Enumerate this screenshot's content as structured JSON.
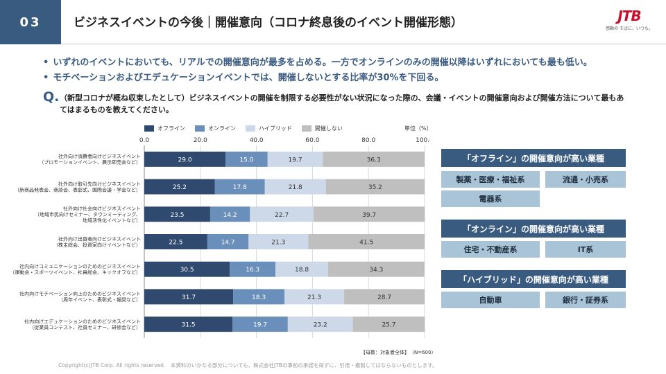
{
  "header": {
    "page_number": "03",
    "title": "ビジネスイベントの今後｜開催意向（コロナ終息後のイベント開催形態）"
  },
  "logo": {
    "mark": "JTB",
    "tagline": "感動の そばに、いつも。"
  },
  "bullets": [
    "いずれのイベントにおいても、リアルでの開催意向が最多を占める。一方でオンラインのみの開催以降はいずれにおいても最も低い。",
    "モチベーションおよびエデュケーションイベントでは、開催しないとする比率が30%を下回る。"
  ],
  "question": {
    "mark": "Q.",
    "text": "（新型コロナが概ね収束したとして）ビジネスイベントの開催を制限する必要性がない状況になった際の、会議・イベントの開催意向および開催方法について最もあてはまるものを教えてください。"
  },
  "chart_data": {
    "type": "bar",
    "orientation": "horizontal",
    "stacked": true,
    "unit_label": "単位（%）",
    "xlim": [
      0,
      100
    ],
    "x_ticks": [
      "0.0",
      "20.0",
      "40.0",
      "60.0",
      "80.0",
      "100.0"
    ],
    "categories": [
      [
        "社外向け消費者向けビジネスイベント",
        "（プロモーションイベント、展示即売会など）"
      ],
      [
        "社外向け取引先向けビジネスイベント",
        "（新商品発表会、商談会、表彰式、国際会議・学会など）"
      ],
      [
        "社外向け社会向けビジネスイベント",
        "（地域市民向けセミナー、タウンミーティング、",
        "地域活性化イベントなど）"
      ],
      [
        "社外向け出資者向けビジネスイベント",
        "（株主総会、投資家向けイベントなど）"
      ],
      [
        "社内向けコミュニケーションのためのビジネスイベント",
        "（運動会・スポーツイベント、社員総会、キックオフなど）"
      ],
      [
        "社内向けモチベーション向上のためのビジネスイベント",
        "（周年イベント、表彰式・報奨など）"
      ],
      [
        "社内向けエデュケーションのためのビジネスイベント",
        "（従業員コンテスト、社員セミナー、研修会など）"
      ]
    ],
    "series": [
      {
        "name": "オフライン",
        "color": "#2f4a6e",
        "label_color": "#ffffff",
        "values": [
          29.0,
          25.2,
          23.5,
          22.5,
          30.5,
          31.7,
          31.5
        ]
      },
      {
        "name": "オンライン",
        "color": "#6a8fba",
        "label_color": "#ffffff",
        "values": [
          15.0,
          17.8,
          14.2,
          14.7,
          16.3,
          18.3,
          19.7
        ]
      },
      {
        "name": "ハイブリッド",
        "color": "#cdd8e8",
        "label_color": "#333333",
        "values": [
          19.7,
          21.8,
          22.7,
          21.3,
          18.8,
          21.3,
          23.2
        ]
      },
      {
        "name": "開催しない",
        "color": "#bfbfbf",
        "label_color": "#333333",
        "values": [
          36.3,
          35.2,
          39.7,
          41.5,
          34.3,
          28.7,
          25.7
        ]
      }
    ],
    "grid": true,
    "legend_position": "top"
  },
  "panels": [
    {
      "header": "「オフライン」の開催意向が高い業種",
      "items": [
        "製薬・医療・福祉系",
        "流通・小売系",
        "電器系"
      ]
    },
    {
      "header": "「オンライン」の開催意向が高い業種",
      "items": [
        "住宅・不動産系",
        "IT系"
      ]
    },
    {
      "header": "「ハイブリッド」の開催意向が高い業種",
      "items": [
        "自動車",
        "銀行・証券系"
      ]
    }
  ],
  "source_note": "【母数：対象者全体】　（N=600）",
  "footer": "Copyright(c)JTB Corp. All rights reserved.　本資料のいかなる部分についても、株式会社JTBの事前の承諾を得ずに、引用・複製してはならないものとします。"
}
